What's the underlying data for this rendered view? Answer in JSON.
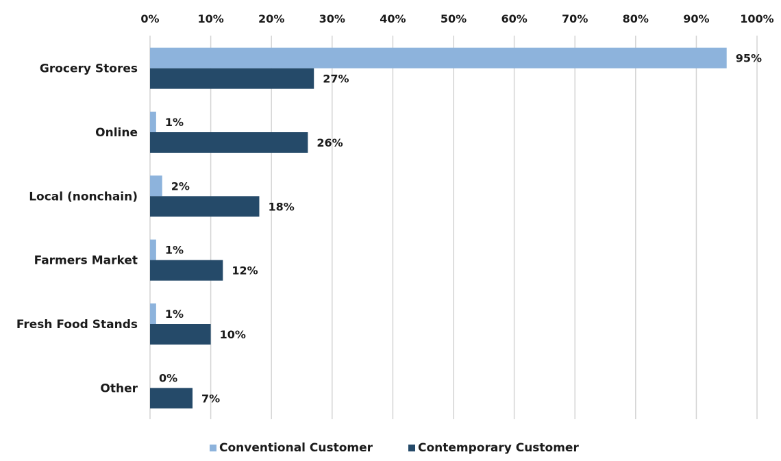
{
  "chart_data": {
    "type": "bar",
    "orientation": "horizontal",
    "categories": [
      "Grocery Stores",
      "Online",
      "Local (nonchain)",
      "Farmers Market",
      "Fresh Food Stands",
      "Other"
    ],
    "series": [
      {
        "name": "Conventional Customer",
        "values": [
          95,
          1,
          2,
          1,
          1,
          0
        ],
        "labels": [
          "95%",
          "1%",
          "2%",
          "1%",
          "1%",
          "0%"
        ],
        "color": "#8db3dc"
      },
      {
        "name": "Contemporary Customer",
        "values": [
          27,
          26,
          18,
          12,
          10,
          7
        ],
        "labels": [
          "27%",
          "26%",
          "18%",
          "12%",
          "10%",
          "7%"
        ],
        "color": "#254a69"
      }
    ],
    "xlim": [
      0,
      100
    ],
    "xticks": [
      0,
      10,
      20,
      30,
      40,
      50,
      60,
      70,
      80,
      90,
      100
    ],
    "xtick_labels": [
      "0%",
      "10%",
      "20%",
      "30%",
      "40%",
      "50%",
      "60%",
      "70%",
      "80%",
      "90%",
      "100%"
    ],
    "x_axis_position": "top",
    "grid": true,
    "legend_position": "bottom"
  }
}
